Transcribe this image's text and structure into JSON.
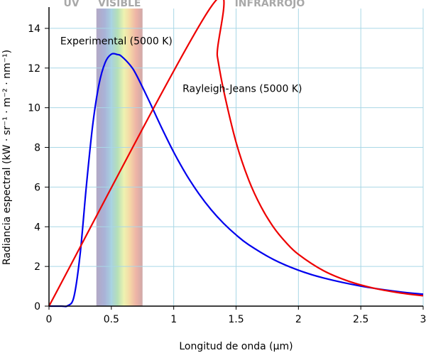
{
  "chart_data": {
    "type": "line",
    "title": "",
    "xlabel": "Longitud de onda (µm)",
    "ylabel": "Radiancia espectral (kW · sr⁻¹ · m⁻² · nm⁻¹)",
    "xlim": [
      0,
      3
    ],
    "ylim": [
      0,
      15
    ],
    "x_ticks": [
      0,
      0.5,
      1,
      1.5,
      2,
      2.5,
      3
    ],
    "x_tick_labels": [
      "0",
      "0.5",
      "1",
      "1.5",
      "2",
      "2.5",
      "3"
    ],
    "y_ticks": [
      0,
      2,
      4,
      6,
      8,
      10,
      12,
      14
    ],
    "y_tick_labels": [
      "0",
      "2",
      "4",
      "6",
      "8",
      "10",
      "12",
      "14"
    ],
    "grid": true,
    "regions": [
      {
        "label": "UV",
        "x_range": [
          0,
          0.38
        ]
      },
      {
        "label": "VISIBLE",
        "x_range": [
          0.38,
          0.75
        ]
      },
      {
        "label": "INFRARROJO",
        "x_range": [
          0.75,
          3
        ]
      }
    ],
    "series": [
      {
        "name": "Experimental (5000 K)",
        "color": "#0000ee",
        "x": [
          0.1,
          0.15,
          0.2,
          0.25,
          0.3,
          0.35,
          0.4,
          0.45,
          0.5,
          0.55,
          0.58,
          0.65,
          0.7,
          0.8,
          0.9,
          1.0,
          1.1,
          1.2,
          1.3,
          1.4,
          1.5,
          1.6,
          1.8,
          2.0,
          2.2,
          2.5,
          2.8,
          3.0
        ],
        "y": [
          0.0,
          0.02,
          0.47,
          2.64,
          6.08,
          9.1,
          11.15,
          12.27,
          12.7,
          12.68,
          12.6,
          12.15,
          11.66,
          10.38,
          9.03,
          7.76,
          6.64,
          5.68,
          4.86,
          4.17,
          3.59,
          3.1,
          2.35,
          1.81,
          1.42,
          1.01,
          0.73,
          0.6
        ]
      },
      {
        "name": "Rayleigh-Jeans (5000 K)",
        "color": "#ee0000",
        "x": [
          1.29,
          1.35,
          1.4,
          1.5,
          1.6,
          1.7,
          1.8,
          1.9,
          2.0,
          2.2,
          2.4,
          2.6,
          2.8,
          3.0
        ],
        "y": [
          15.0,
          12.58,
          10.88,
          8.26,
          6.38,
          5.01,
          3.98,
          3.21,
          2.61,
          1.79,
          1.26,
          0.91,
          0.68,
          0.52
        ]
      }
    ],
    "annotations": [
      {
        "text": "Experimental (5000 K)",
        "x": 0.54,
        "y": 13.2
      },
      {
        "text": "Rayleigh-Jeans (5000 K)",
        "x": 1.55,
        "y": 10.8
      }
    ]
  }
}
